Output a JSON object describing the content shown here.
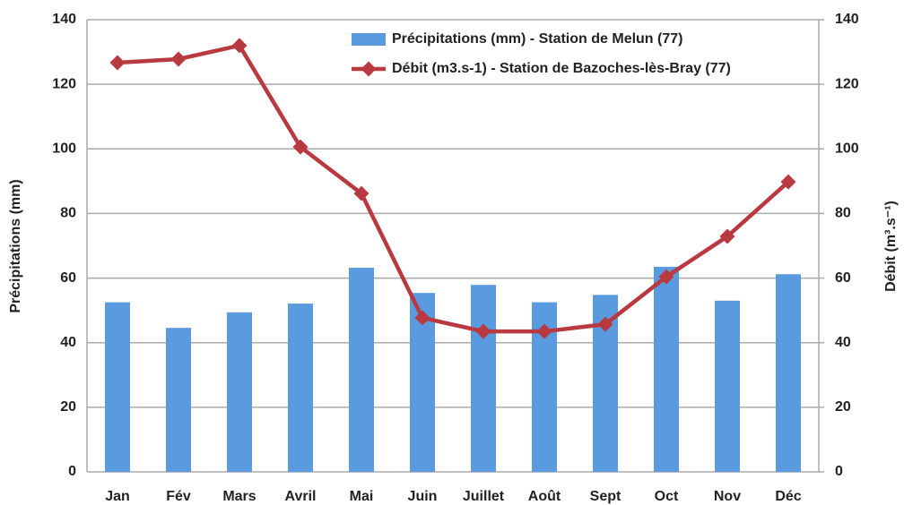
{
  "chart_data": {
    "type": "bar_line",
    "ylabel": "Précipitations (mm)",
    "y2label": "Débit (m³.s⁻¹)",
    "categories": [
      "Jan",
      "Fév",
      "Mars",
      "Avril",
      "Mai",
      "Juin",
      "Juillet",
      "Août",
      "Sept",
      "Oct",
      "Nov",
      "Déc"
    ],
    "series": [
      {
        "name": "Précipitations (mm) - Station de Melun (77)",
        "type": "bar",
        "axis": "y",
        "color": "#5a9be0",
        "values": [
          52.5,
          44.6,
          49.4,
          52.1,
          63.2,
          55.4,
          57.9,
          52.5,
          54.8,
          63.5,
          53,
          61.2
        ]
      },
      {
        "name": "Débit (m3.s-1) - Station de Bazoches-lès-Bray  (77)",
        "type": "line",
        "axis": "y2",
        "color": "#b8393f",
        "values": [
          126.7,
          127.8,
          132,
          100.6,
          86.2,
          47.7,
          43.5,
          43.5,
          45.7,
          60.4,
          72.9,
          89.8
        ]
      }
    ],
    "ylim": [
      0,
      140
    ],
    "yticks": [
      0,
      20,
      40,
      60,
      80,
      100,
      120,
      140
    ],
    "y2lim": [
      0,
      140
    ],
    "y2ticks": [
      0,
      20,
      40,
      60,
      80,
      100,
      120,
      140
    ],
    "grid": true
  }
}
